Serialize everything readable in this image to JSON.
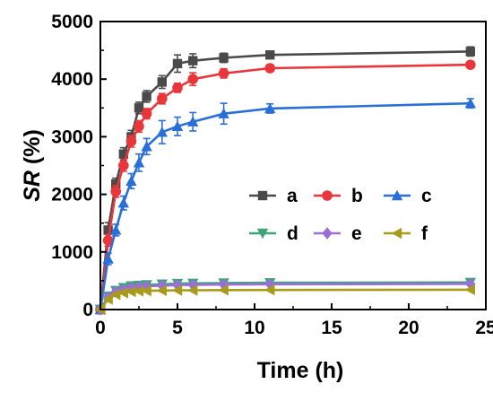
{
  "chart_data": {
    "type": "line",
    "xlabel": "Time (h)",
    "ylabel_italic": "SR",
    "ylabel_rest": " (%)",
    "xlim": [
      0,
      25
    ],
    "ylim": [
      0,
      5000
    ],
    "xticks": [
      0,
      5,
      10,
      15,
      20,
      25
    ],
    "yticks": [
      0,
      1000,
      2000,
      3000,
      4000,
      5000
    ],
    "grid": false,
    "legend_position": "center-right",
    "x": [
      0,
      0.5,
      1,
      1.5,
      2,
      2.5,
      3,
      4,
      5,
      6,
      8,
      11,
      24
    ],
    "series": [
      {
        "name": "a",
        "color": "#4a4a4a",
        "marker": "square",
        "values": [
          0,
          1380,
          2180,
          2700,
          3000,
          3500,
          3700,
          3950,
          4270,
          4320,
          4370,
          4420,
          4480
        ],
        "errors": [
          30,
          130,
          100,
          110,
          110,
          100,
          100,
          110,
          150,
          120,
          80,
          60,
          80
        ]
      },
      {
        "name": "b",
        "color": "#e8363a",
        "marker": "circle",
        "values": [
          0,
          1200,
          2050,
          2500,
          2920,
          3180,
          3400,
          3660,
          3850,
          4000,
          4100,
          4190,
          4250
        ],
        "errors": [
          30,
          100,
          100,
          100,
          100,
          100,
          90,
          90,
          80,
          110,
          80,
          60,
          50
        ]
      },
      {
        "name": "c",
        "color": "#2a6fd8",
        "marker": "triangle-up",
        "values": [
          0,
          880,
          1380,
          1850,
          2230,
          2550,
          2830,
          3080,
          3180,
          3260,
          3400,
          3490,
          3580
        ],
        "errors": [
          30,
          100,
          100,
          120,
          130,
          150,
          140,
          200,
          160,
          160,
          180,
          80,
          80
        ]
      },
      {
        "name": "d",
        "color": "#3ea57a",
        "marker": "triangle-down",
        "values": [
          0,
          230,
          330,
          380,
          410,
          420,
          430,
          440,
          450,
          455,
          460,
          465,
          470
        ],
        "errors": [
          20,
          30,
          30,
          30,
          30,
          30,
          30,
          30,
          30,
          30,
          30,
          30,
          30
        ]
      },
      {
        "name": "e",
        "color": "#9b6ed8",
        "marker": "diamond",
        "values": [
          0,
          220,
          310,
          350,
          380,
          395,
          405,
          415,
          425,
          430,
          435,
          440,
          445
        ],
        "errors": [
          20,
          30,
          30,
          30,
          30,
          30,
          30,
          30,
          30,
          30,
          30,
          30,
          30
        ]
      },
      {
        "name": "f",
        "color": "#a89a1a",
        "marker": "triangle-left",
        "values": [
          0,
          180,
          260,
          290,
          310,
          320,
          325,
          330,
          335,
          335,
          338,
          340,
          345
        ],
        "errors": [
          20,
          30,
          30,
          30,
          30,
          30,
          30,
          30,
          30,
          30,
          30,
          30,
          30
        ]
      }
    ]
  }
}
